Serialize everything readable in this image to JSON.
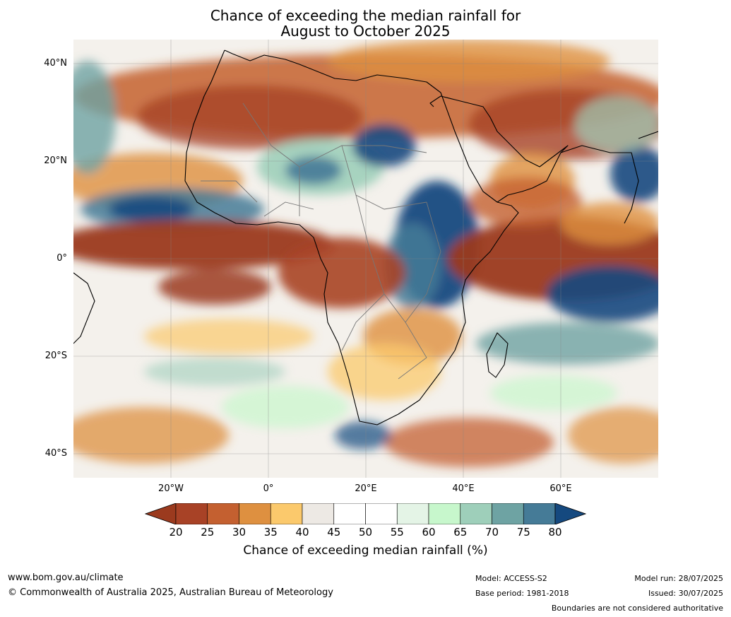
{
  "title": {
    "line1": "Chance of exceeding the median rainfall for",
    "line2": "August to October 2025"
  },
  "map": {
    "lat_labels": [
      "40°N",
      "20°N",
      "0°",
      "20°S",
      "40°S"
    ],
    "lon_labels": [
      "20°W",
      "0°",
      "20°E",
      "40°E",
      "60°E"
    ]
  },
  "colorbar": {
    "ticks": [
      "20",
      "25",
      "30",
      "35",
      "40",
      "45",
      "50",
      "55",
      "60",
      "65",
      "70",
      "75",
      "80"
    ],
    "colors": [
      "#9b3a1e",
      "#a84226",
      "#c46030",
      "#de9040",
      "#fbc96c",
      "#ede9e4",
      "#ffffff",
      "#ffffff",
      "#e4f4e6",
      "#c7f7cc",
      "#9ecfba",
      "#6ea3a3",
      "#457b97",
      "#15497f"
    ],
    "label": "Chance of exceeding median rainfall (%)"
  },
  "footer": {
    "website": "www.bom.gov.au/climate",
    "copyright": "© Commonwealth of Australia 2025, Australian Bureau of Meteorology",
    "model": "Model: ACCESS-S2",
    "base_period": "Base period: 1981-2018",
    "model_run": "Model run: 28/07/2025",
    "issued": "Issued: 30/07/2025",
    "disclaimer": "Boundaries are not considered authoritative"
  }
}
